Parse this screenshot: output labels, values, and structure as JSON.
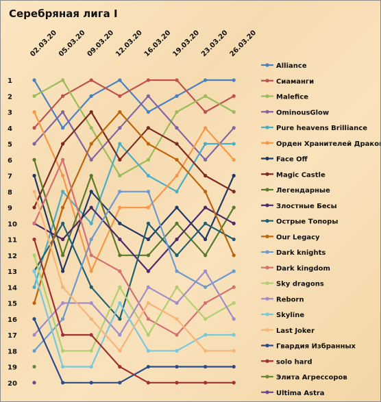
{
  "chart_data": {
    "type": "line",
    "title": "Серебряная лига I",
    "x": [
      "02.03.20",
      "05.03.20",
      "09.03.20",
      "12.03.20",
      "16.03.20",
      "19.03.20",
      "23.03.20",
      "26.03.20"
    ],
    "y_ticks": [
      1,
      2,
      3,
      4,
      5,
      6,
      7,
      8,
      9,
      10,
      11,
      12,
      13,
      14,
      15,
      16,
      17,
      18,
      19,
      20
    ],
    "ylim": [
      20,
      1
    ],
    "y_inverted": true,
    "grid": false,
    "legend_position": "right",
    "series": [
      {
        "name": "Alliance",
        "color": "#4a7fc1",
        "values": [
          1,
          4,
          2,
          1,
          3,
          2,
          1,
          1
        ]
      },
      {
        "name": "Сиаманги",
        "color": "#c0504d",
        "values": [
          4,
          2,
          1,
          2,
          1,
          1,
          3,
          2
        ]
      },
      {
        "name": "Malefice",
        "color": "#9bbb59",
        "values": [
          2,
          1,
          4,
          7,
          6,
          3,
          2,
          3
        ]
      },
      {
        "name": "OminousGlow",
        "color": "#8064a2",
        "values": [
          5,
          3,
          6,
          4,
          2,
          4,
          6,
          4
        ]
      },
      {
        "name": "Pure heavens Brilliance",
        "color": "#4bacc6",
        "values": [
          14,
          8,
          10,
          5,
          7,
          8,
          5,
          5
        ]
      },
      {
        "name": "Орден Хранителей Дракона",
        "color": "#f79646",
        "values": [
          3,
          7,
          13,
          9,
          9,
          7,
          4,
          6
        ]
      },
      {
        "name": "Face Off",
        "color": "#1f3864",
        "values": [
          7,
          13,
          8,
          10,
          11,
          9,
          11,
          7
        ]
      },
      {
        "name": "Magic Castle",
        "color": "#7a2a20",
        "values": [
          9,
          5,
          3,
          6,
          4,
          5,
          7,
          8
        ]
      },
      {
        "name": "Легендарные",
        "color": "#5a7a2a",
        "values": [
          6,
          12,
          7,
          12,
          12,
          10,
          12,
          9
        ]
      },
      {
        "name": "Злостные Бесы",
        "color": "#4a2a6a",
        "values": [
          10,
          11,
          9,
          11,
          13,
          11,
          9,
          10
        ]
      },
      {
        "name": "Острые Топоры",
        "color": "#1f6070",
        "values": [
          13,
          10,
          14,
          16,
          10,
          12,
          10,
          11
        ]
      },
      {
        "name": "Our Legacy",
        "color": "#c0640a",
        "values": [
          15,
          9,
          5,
          3,
          5,
          6,
          8,
          12
        ]
      },
      {
        "name": "Dark knights",
        "color": "#6a9ad0",
        "values": [
          18,
          16,
          11,
          8,
          8,
          13,
          14,
          13
        ]
      },
      {
        "name": "Dark kingdom",
        "color": "#d47070",
        "values": [
          10,
          6,
          12,
          13,
          16,
          17,
          15,
          14
        ]
      },
      {
        "name": "Sky dragons",
        "color": "#b0d070",
        "values": [
          12,
          18,
          18,
          14,
          17,
          14,
          16,
          15
        ]
      },
      {
        "name": "Reborn",
        "color": "#a08cc8",
        "values": [
          17,
          15,
          15,
          17,
          14,
          15,
          13,
          16
        ]
      },
      {
        "name": "Skyline",
        "color": "#78c8dc",
        "values": [
          13,
          19,
          19,
          15,
          18,
          18,
          17,
          17
        ]
      },
      {
        "name": "Last Joker",
        "color": "#f8b478",
        "values": [
          8,
          14,
          16,
          18,
          15,
          16,
          18,
          18
        ]
      },
      {
        "name": "Гвардия Избранных",
        "color": "#2a4a8a",
        "values": [
          16,
          20,
          20,
          20,
          19,
          19,
          19,
          19
        ]
      },
      {
        "name": "solo hard",
        "color": "#a03030",
        "values": [
          11,
          17,
          17,
          19,
          20,
          20,
          20,
          20
        ]
      },
      {
        "name": "Элита Агрессоров",
        "color": "#6a8a30",
        "values": [
          19,
          null,
          null,
          null,
          null,
          null,
          null,
          null
        ]
      },
      {
        "name": "Ultima Astra",
        "color": "#6a4a8a",
        "values": [
          20,
          null,
          null,
          null,
          null,
          null,
          null,
          null
        ]
      }
    ]
  }
}
